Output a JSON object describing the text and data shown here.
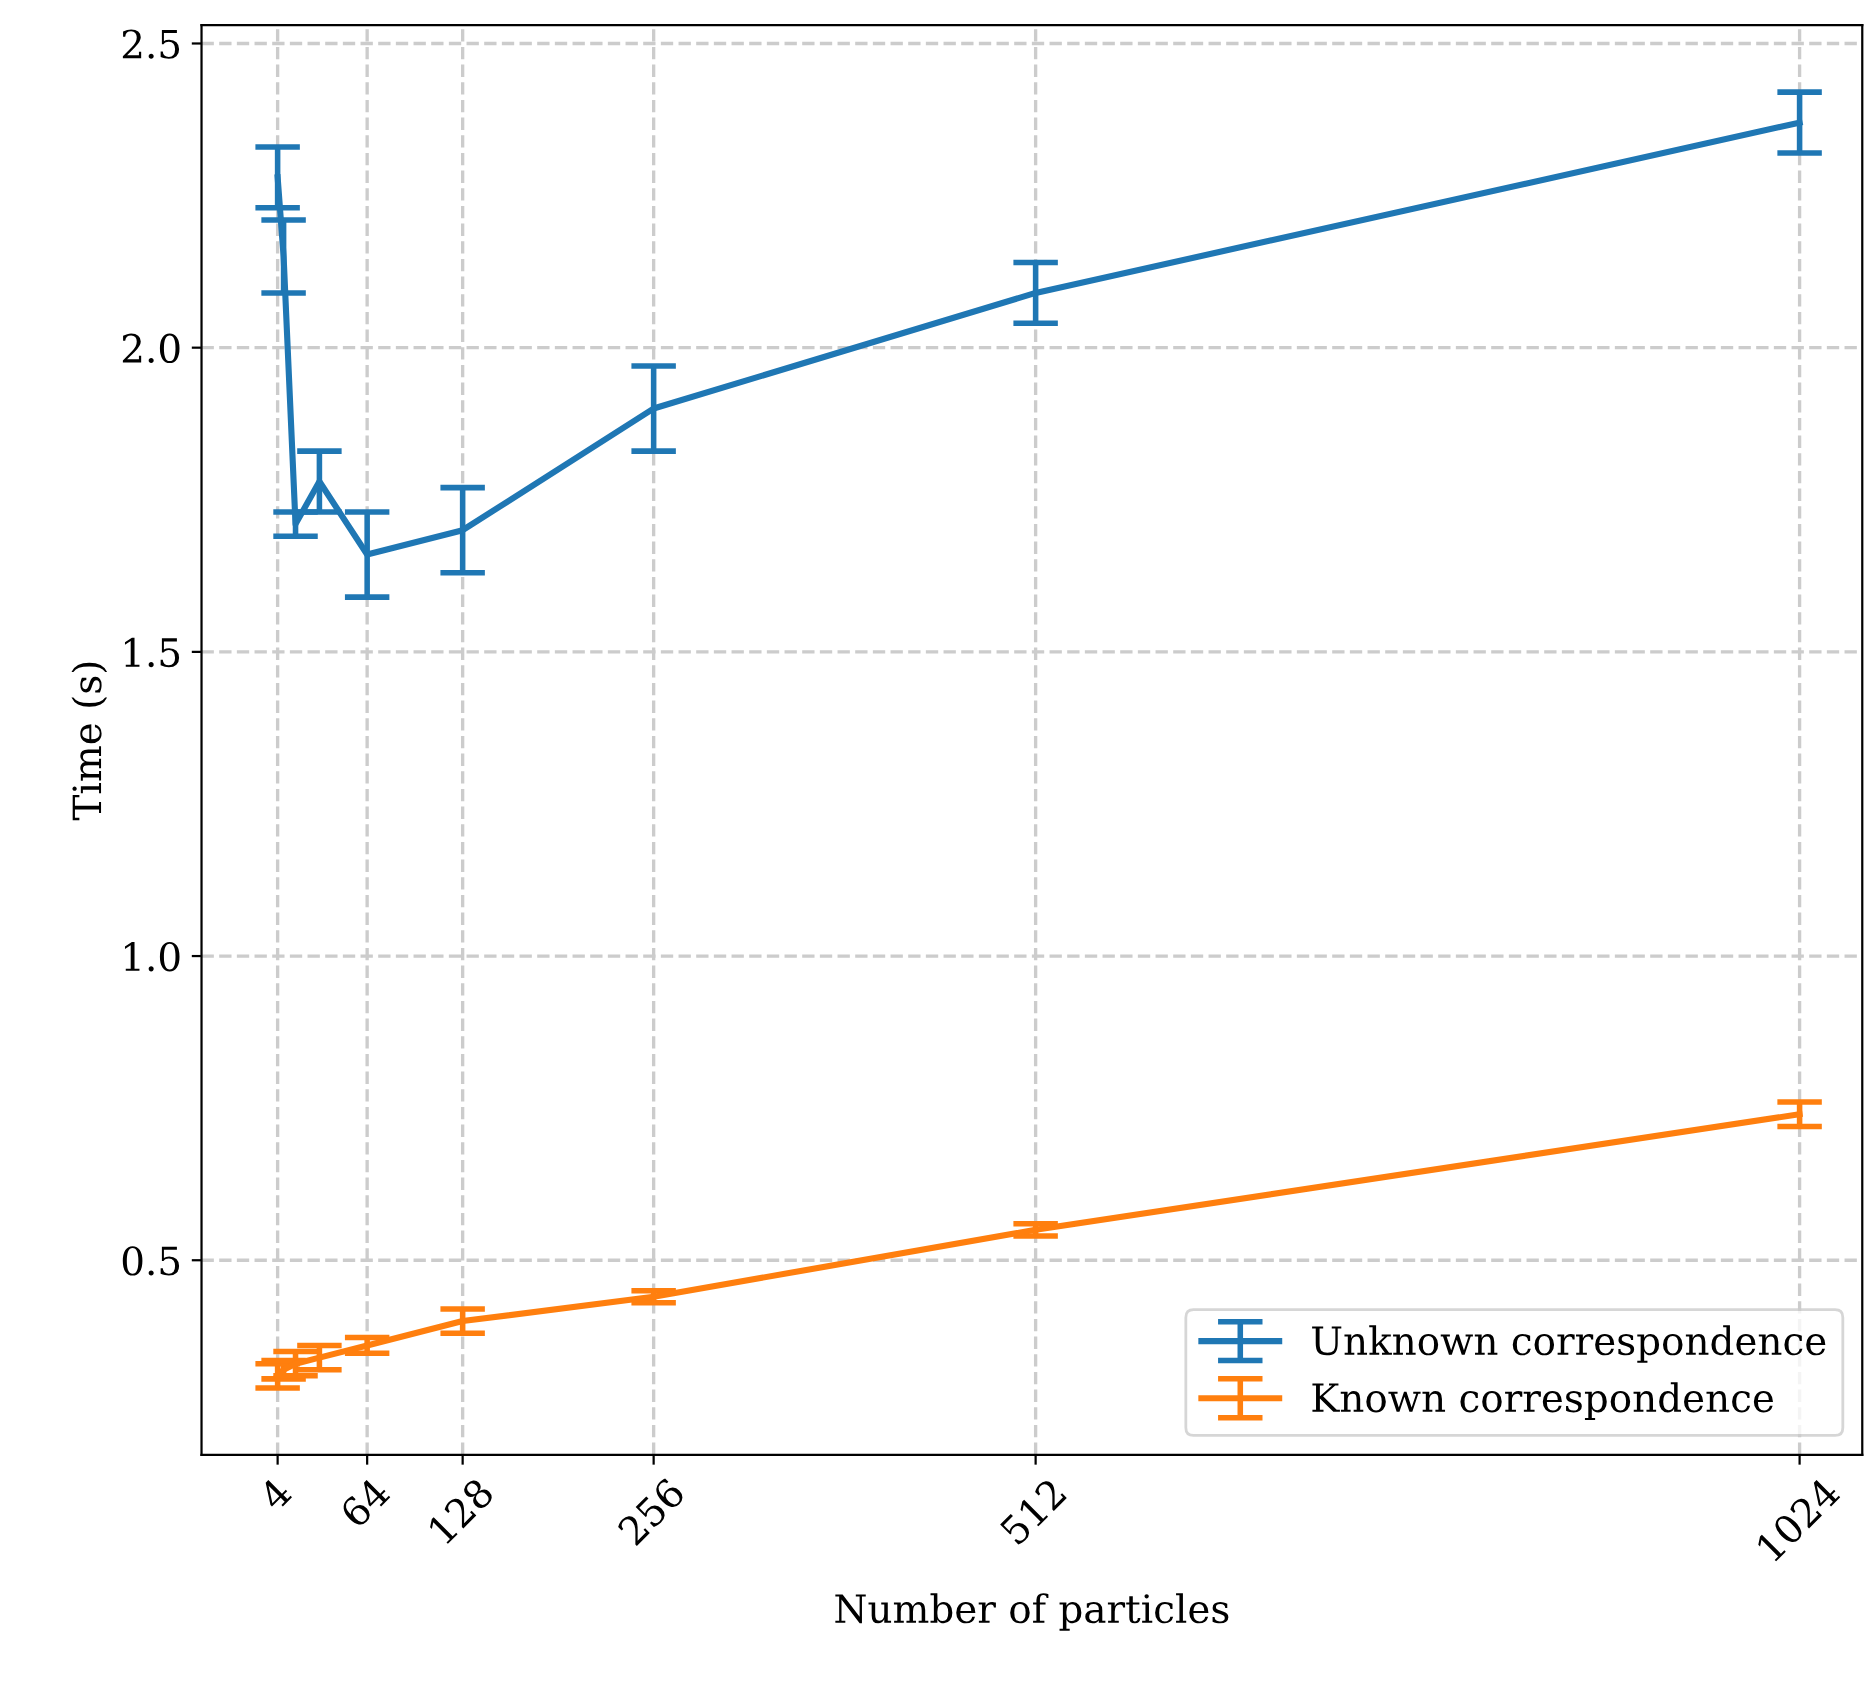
{
  "chart_data": {
    "type": "line",
    "xlabel": "Number of particles",
    "ylabel": "Time (s)",
    "x": [
      4,
      8,
      16,
      32,
      64,
      128,
      256,
      512,
      1024
    ],
    "series": [
      {
        "name": "Unknown correspondence",
        "color": "#1f77b4",
        "values": [
          2.28,
          2.15,
          1.71,
          1.78,
          1.66,
          1.7,
          1.9,
          2.09,
          2.37
        ],
        "errors": [
          0.05,
          0.06,
          0.02,
          0.05,
          0.07,
          0.07,
          0.07,
          0.05,
          0.05
        ]
      },
      {
        "name": "Known correspondence",
        "color": "#ff7f0e",
        "values": [
          0.31,
          0.32,
          0.33,
          0.34,
          0.36,
          0.4,
          0.44,
          0.55,
          0.74
        ],
        "errors": [
          0.02,
          0.015,
          0.02,
          0.02,
          0.013,
          0.02,
          0.01,
          0.01,
          0.02
        ]
      }
    ],
    "xlim": [
      -47,
      1066
    ],
    "ylim": [
      0.18,
      2.53
    ],
    "xticks": [
      4,
      64,
      128,
      256,
      512,
      1024
    ],
    "yticks": [
      {
        "value": 0.5,
        "label": "0.5"
      },
      {
        "value": 1.0,
        "label": "1.0"
      },
      {
        "value": 1.5,
        "label": "1.5"
      },
      {
        "value": 2.0,
        "label": "2.0"
      },
      {
        "value": 2.5,
        "label": "2.5"
      }
    ],
    "grid": true,
    "line_style": "solid",
    "legend": "bottom right",
    "marker": "none"
  }
}
